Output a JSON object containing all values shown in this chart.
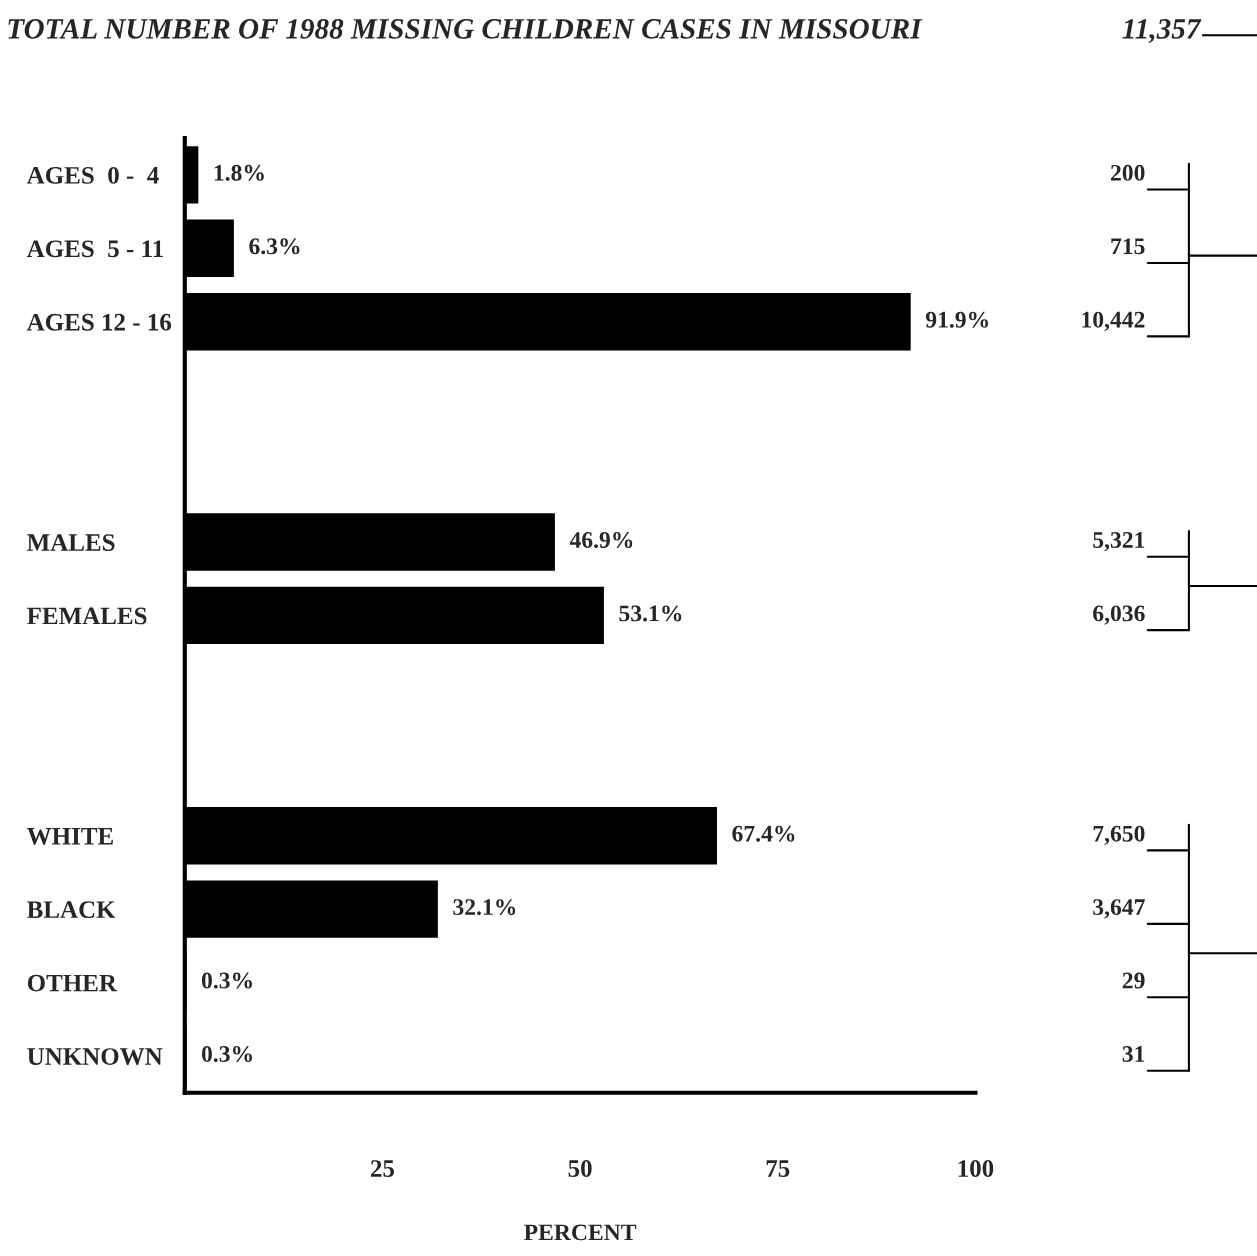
{
  "chart_data": {
    "type": "bar",
    "orientation": "horizontal",
    "title": "TOTAL NUMBER OF 1988 MISSING CHILDREN CASES IN MISSOURI",
    "categories": [
      "AGES  0 -  4",
      "AGES  5 - 11",
      "AGES 12 - 16",
      null,
      null,
      "MALES",
      "FEMALES",
      null,
      null,
      "WHITE",
      "BLACK",
      "OTHER",
      "UNKNOWN"
    ],
    "series": [
      {
        "color": "#000000",
        "values": [
          1.8,
          6.3,
          91.9,
          null,
          null,
          46.9,
          53.1,
          null,
          null,
          67.4,
          32.1,
          0.3,
          0.3
        ],
        "value_labels": [
          "1.8%",
          "6.3%",
          "91.9%",
          null,
          null,
          "46.9%",
          "53.1%",
          null,
          null,
          "67.4%",
          "32.1%",
          "0.3%",
          "0.3%"
        ]
      }
    ],
    "xlabel": "PERCENT",
    "xlim": [
      0,
      100
    ],
    "xticks": [
      25,
      50,
      75,
      100
    ],
    "grid": false,
    "legend": false,
    "annotations": [
      "11,357",
      "200",
      "715",
      "10,442",
      "5,321",
      "6,036",
      "7,650",
      "3,647",
      "29",
      "31"
    ]
  }
}
